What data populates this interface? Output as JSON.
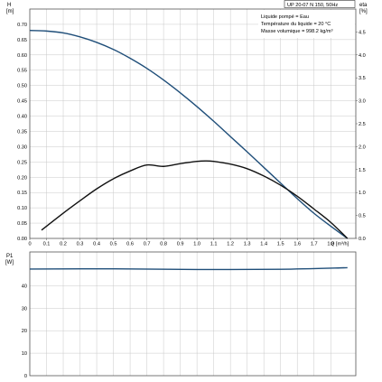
{
  "chart_data": [
    {
      "type": "line",
      "id": "head_efficiency",
      "title": "UP 20-07 N 150, 50Hz",
      "ylabel_left_lines": [
        "H",
        "[m]"
      ],
      "ylabel_right_lines": [
        "eta",
        "[%]"
      ],
      "xlabel": "Q [m³/h]",
      "xlim": [
        0,
        1.95
      ],
      "ylim_left": [
        0,
        0.75
      ],
      "ylim_right": [
        0,
        5.0
      ],
      "x_ticks": [
        "0",
        "0.1",
        "0.2",
        "0.3",
        "0.4",
        "0.5",
        "0.6",
        "0.7",
        "0.8",
        "0.9",
        "1.0",
        "1.1",
        "1.2",
        "1.3",
        "1.4",
        "1.5",
        "1.6",
        "1.7",
        "1.8"
      ],
      "y_ticks_left": [
        "0.00",
        "0.05",
        "0.10",
        "0.15",
        "0.20",
        "0.25",
        "0.30",
        "0.35",
        "0.40",
        "0.45",
        "0.50",
        "0.55",
        "0.60",
        "0.65",
        "0.70"
      ],
      "y_ticks_right": [
        "0.0",
        "0.5",
        "1.0",
        "1.5",
        "2.0",
        "2.5",
        "3.0",
        "3.5",
        "4.0",
        "4.5"
      ],
      "grid": true,
      "annotations": [
        "Liquide pompé = Eau",
        "Température du liquide = 20 °C",
        "Masse volumique = 998.2 kg/m³"
      ],
      "series": [
        {
          "axis": "left",
          "color": "#1f4e79",
          "x": [
            0,
            0.1,
            0.2,
            0.3,
            0.4,
            0.5,
            0.6,
            0.7,
            0.8,
            0.9,
            1.0,
            1.1,
            1.2,
            1.3,
            1.4,
            1.5,
            1.6,
            1.7,
            1.8,
            1.9
          ],
          "y": [
            0.68,
            0.678,
            0.672,
            0.659,
            0.641,
            0.618,
            0.589,
            0.556,
            0.518,
            0.476,
            0.431,
            0.383,
            0.333,
            0.283,
            0.232,
            0.181,
            0.13,
            0.082,
            0.04,
            0.0
          ]
        },
        {
          "axis": "right",
          "color": "#111111",
          "x": [
            0.07,
            0.2,
            0.3,
            0.4,
            0.5,
            0.6,
            0.7,
            0.8,
            0.9,
            1.0,
            1.05,
            1.1,
            1.2,
            1.3,
            1.4,
            1.5,
            1.6,
            1.7,
            1.8,
            1.9
          ],
          "y": [
            0.18,
            0.55,
            0.82,
            1.08,
            1.3,
            1.47,
            1.6,
            1.57,
            1.63,
            1.68,
            1.69,
            1.68,
            1.62,
            1.52,
            1.36,
            1.16,
            0.92,
            0.64,
            0.35,
            0.0
          ]
        }
      ]
    },
    {
      "type": "line",
      "id": "power",
      "ylabel_lines": [
        "P1",
        "[W]"
      ],
      "xlim": [
        0,
        1.95
      ],
      "ylim": [
        0,
        55
      ],
      "y_ticks": [
        "0",
        "10",
        "20",
        "30",
        "40"
      ],
      "grid": true,
      "series": [
        {
          "color": "#1f4e79",
          "x": [
            0,
            0.5,
            1.0,
            1.5,
            1.9
          ],
          "y": [
            47.4,
            47.5,
            47.2,
            47.3,
            48.0
          ]
        }
      ]
    }
  ]
}
